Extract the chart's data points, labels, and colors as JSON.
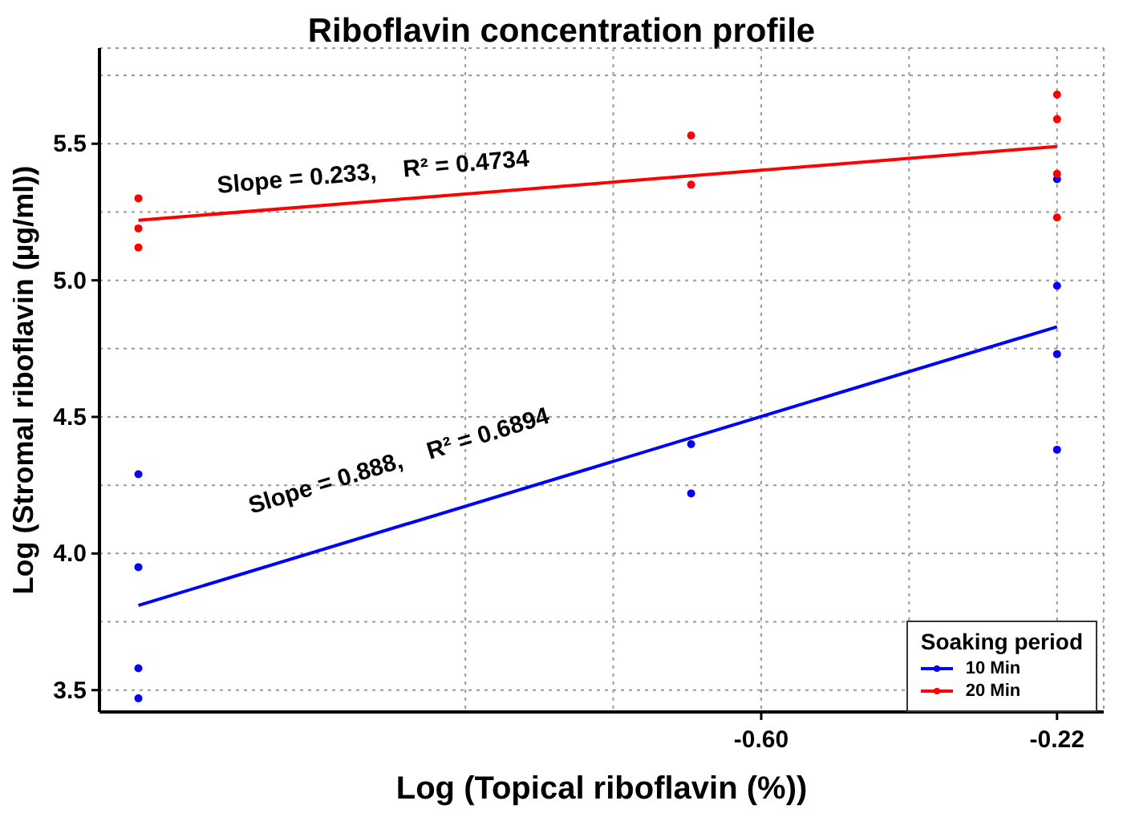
{
  "chart_data": {
    "type": "scatter",
    "title": "Riboflavin concentration profile",
    "xlabel": "Log (Topical riboflavin (%))",
    "ylabel": "Log (Stromal riboflavin (µg/ml))",
    "legend_title": "Soaking period",
    "legend": "bottom right",
    "grid": true,
    "xlim": [
      -1.45,
      -0.16
    ],
    "xticks": [
      {
        "value": -0.98,
        "label": null
      },
      {
        "value": -0.79,
        "label": null
      },
      {
        "value": -0.6,
        "label": "-0.60"
      },
      {
        "value": -0.41,
        "label": null
      },
      -0.22
    ],
    "ylim": [
      3.42,
      5.85
    ],
    "yticks": [
      3.5,
      {
        "value": 3.75,
        "label": null
      },
      {
        "value": 4,
        "label": "4.0"
      },
      {
        "value": 4.25,
        "label": null
      },
      4.5,
      {
        "value": 4.75,
        "label": null
      },
      {
        "value": 5,
        "label": "5.0"
      },
      {
        "value": 5.25,
        "label": null
      },
      5.5,
      {
        "value": 5.75,
        "label": null
      }
    ],
    "series": [
      {
        "name": "10 Min",
        "marker": "circle",
        "color": "#0000ff",
        "x": [
          -1.4,
          -1.4,
          -1.4,
          -1.4,
          -0.69,
          -0.69,
          -0.22,
          -0.22,
          -0.22,
          -0.22
        ],
        "values": [
          4.29,
          3.95,
          3.58,
          3.47,
          4.4,
          4.22,
          5.37,
          4.98,
          4.73,
          4.38
        ]
      },
      {
        "name": "20 Min",
        "marker": "circle",
        "color": "#ff0000",
        "x": [
          -1.4,
          -1.4,
          -1.4,
          -0.69,
          -0.69,
          -0.22,
          -0.22,
          -0.22,
          -0.22
        ],
        "values": [
          5.3,
          5.19,
          5.12,
          5.53,
          5.35,
          5.68,
          5.59,
          5.39,
          5.23
        ]
      },
      {
        "type": "line",
        "color": "#0000ff",
        "x": [
          -1.4,
          -0.22
        ],
        "values": [
          3.81,
          4.83
        ]
      },
      {
        "type": "line",
        "color": "#ff0000",
        "x": [
          -1.4,
          -0.22
        ],
        "values": [
          5.22,
          5.49
        ]
      }
    ],
    "annotations": [
      "Slope = 0.233,    R² = 0.4734",
      "Slope = 0.888,    R² = 0.6894"
    ]
  }
}
